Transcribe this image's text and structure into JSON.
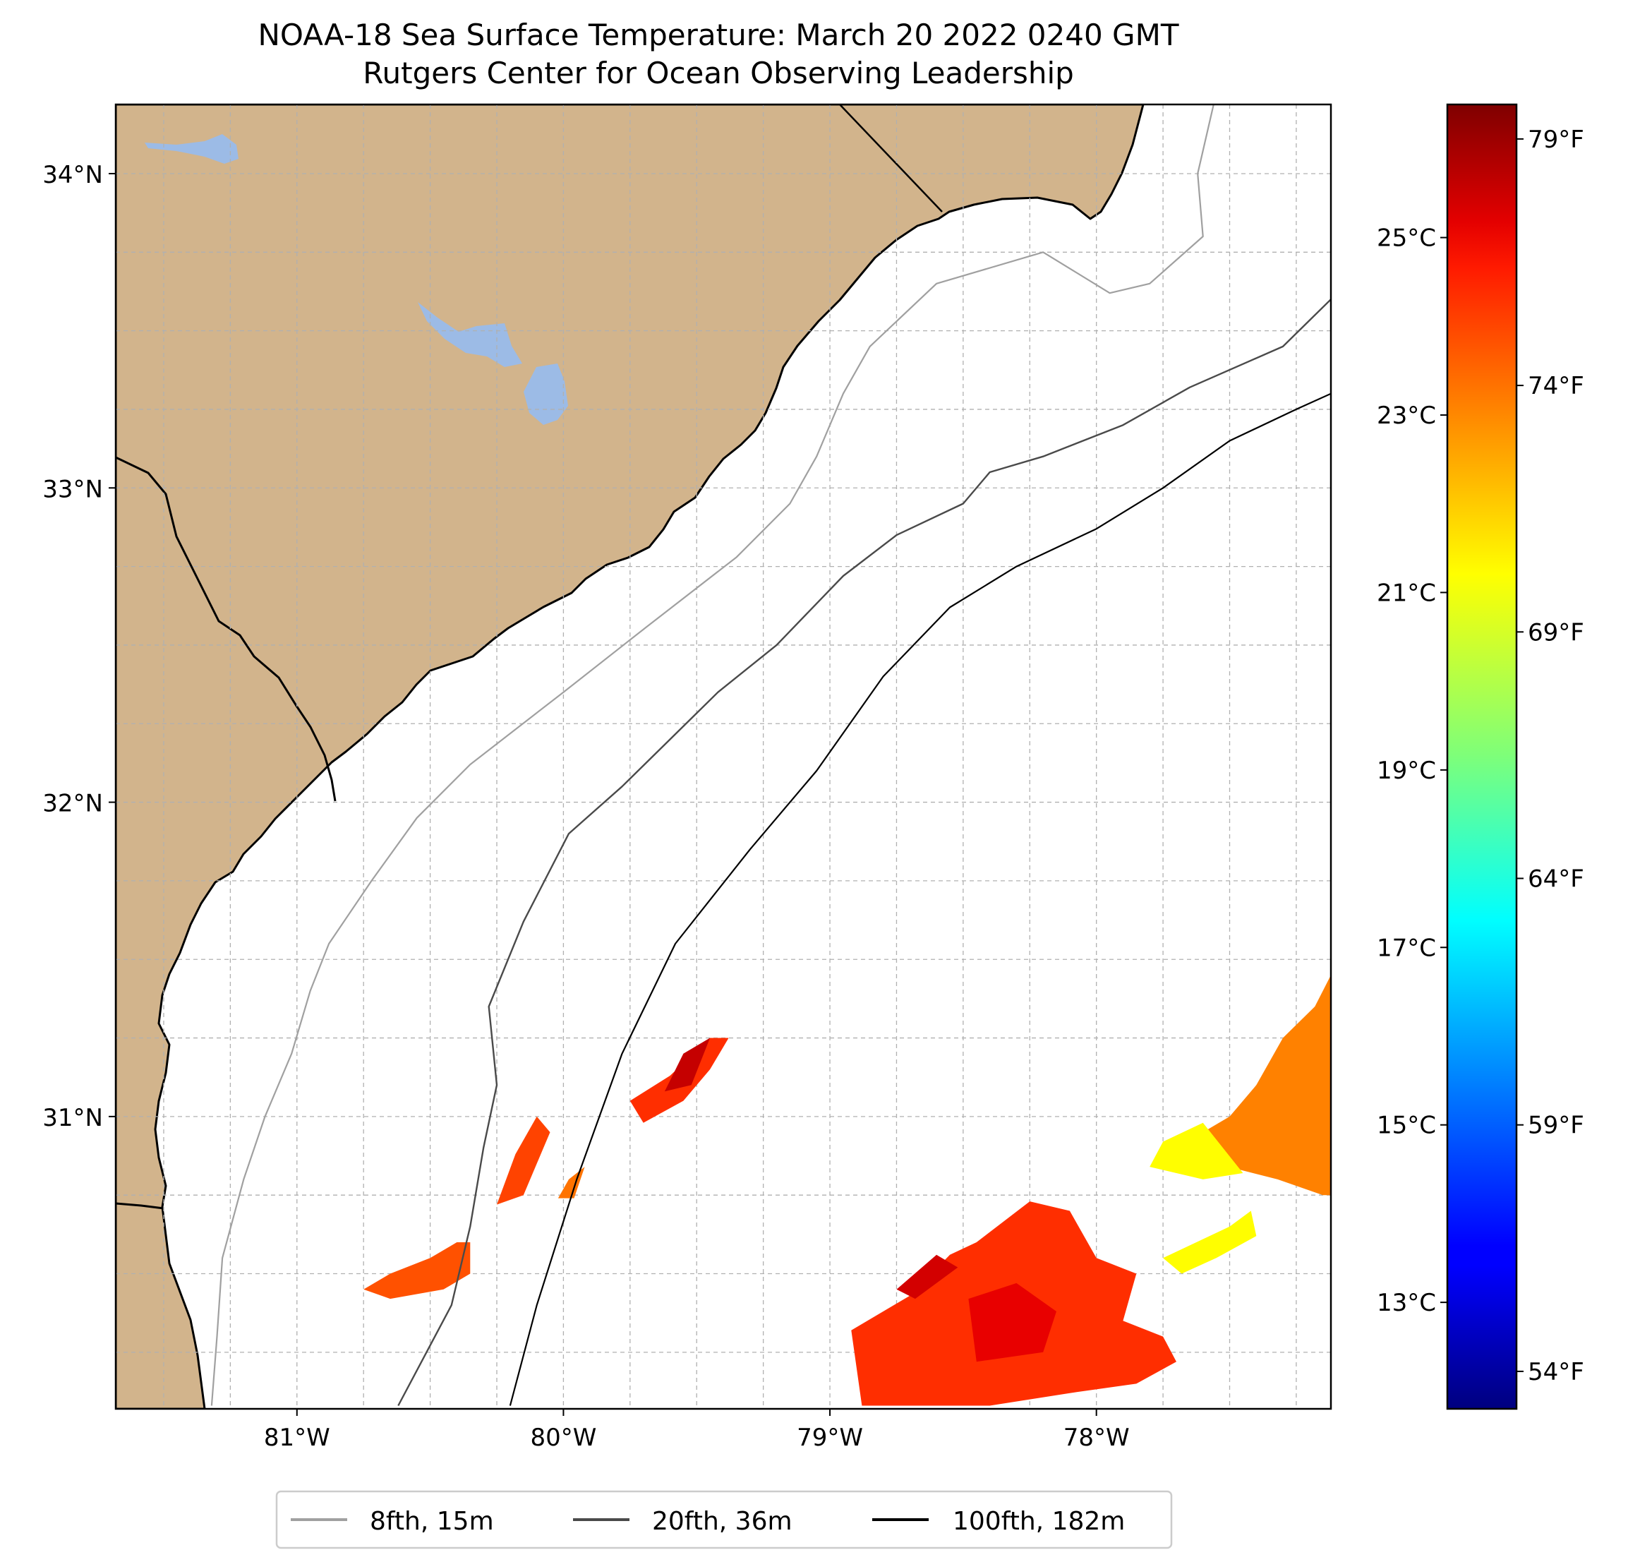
{
  "title": {
    "line1": "NOAA-18 Sea Surface Temperature: March 20 2022 0240 GMT",
    "line2": "Rutgers Center for Ocean Observing Leadership"
  },
  "map": {
    "extent": {
      "lon_min": -81.68,
      "lon_max": -77.12,
      "lat_min": 30.07,
      "lat_max": 34.22
    },
    "land_color": "#d2b48c",
    "lake_color": "#9cbbe6",
    "coast_color": "#000000",
    "gridlines": "dashed",
    "grid_minor_lon_step": 0.25,
    "grid_minor_lat_step": 0.25
  },
  "axes": {
    "lat_ticks": [
      {
        "value": 34,
        "label": "34°N"
      },
      {
        "value": 33,
        "label": "33°N"
      },
      {
        "value": 32,
        "label": "32°N"
      },
      {
        "value": 31,
        "label": "31°N"
      }
    ],
    "lon_ticks": [
      {
        "value": -81,
        "label": "81°W"
      },
      {
        "value": -80,
        "label": "80°W"
      },
      {
        "value": -79,
        "label": "79°W"
      },
      {
        "value": -78,
        "label": "78°W"
      }
    ]
  },
  "colorbar": {
    "cmap": "jet",
    "vmin_c": 11.8,
    "vmax_c": 26.5,
    "celsius_ticks": [
      {
        "value": 13,
        "label": "13°C"
      },
      {
        "value": 15,
        "label": "15°C"
      },
      {
        "value": 17,
        "label": "17°C"
      },
      {
        "value": 19,
        "label": "19°C"
      },
      {
        "value": 21,
        "label": "21°C"
      },
      {
        "value": 23,
        "label": "23°C"
      },
      {
        "value": 25,
        "label": "25°C"
      }
    ],
    "fahrenheit_ticks": [
      {
        "value": 54,
        "label": "54°F"
      },
      {
        "value": 59,
        "label": "59°F"
      },
      {
        "value": 64,
        "label": "64°F"
      },
      {
        "value": 69,
        "label": "69°F"
      },
      {
        "value": 74,
        "label": "74°F"
      },
      {
        "value": 79,
        "label": "79°F"
      }
    ]
  },
  "legend": {
    "entries": [
      {
        "label": "8fth, 15m",
        "color": "#a0a0a0"
      },
      {
        "label": "20fth, 36m",
        "color": "#4a4a4a"
      },
      {
        "label": "100fth, 182m",
        "color": "#000000"
      }
    ]
  },
  "sst_patches": [
    {
      "temp_c": 24.0,
      "points": [
        [
          -78.92,
          30.32
        ],
        [
          -78.7,
          30.43
        ],
        [
          -78.55,
          30.56
        ],
        [
          -78.45,
          30.6
        ],
        [
          -78.25,
          30.73
        ],
        [
          -78.1,
          30.7
        ],
        [
          -78.0,
          30.55
        ],
        [
          -77.85,
          30.5
        ],
        [
          -77.9,
          30.35
        ],
        [
          -77.75,
          30.3
        ],
        [
          -77.7,
          30.22
        ],
        [
          -77.85,
          30.15
        ],
        [
          -78.1,
          30.12
        ],
        [
          -78.4,
          30.08
        ],
        [
          -78.88,
          30.08
        ]
      ]
    },
    {
      "temp_c": 25.0,
      "points": [
        [
          -78.48,
          30.42
        ],
        [
          -78.3,
          30.47
        ],
        [
          -78.15,
          30.38
        ],
        [
          -78.2,
          30.25
        ],
        [
          -78.45,
          30.22
        ]
      ]
    },
    {
      "temp_c": 25.3,
      "points": [
        [
          -78.75,
          30.45
        ],
        [
          -78.6,
          30.56
        ],
        [
          -78.52,
          30.52
        ],
        [
          -78.68,
          30.42
        ]
      ]
    },
    {
      "temp_c": 22.8,
      "points": [
        [
          -77.12,
          31.45
        ],
        [
          -77.18,
          31.35
        ],
        [
          -77.3,
          31.25
        ],
        [
          -77.4,
          31.1
        ],
        [
          -77.5,
          31.0
        ],
        [
          -77.6,
          30.95
        ],
        [
          -77.55,
          30.85
        ],
        [
          -77.32,
          30.8
        ],
        [
          -77.15,
          30.75
        ],
        [
          -77.12,
          30.75
        ]
      ]
    },
    {
      "temp_c": 21.0,
      "points": [
        [
          -77.6,
          30.98
        ],
        [
          -77.75,
          30.92
        ],
        [
          -77.8,
          30.84
        ],
        [
          -77.6,
          30.8
        ],
        [
          -77.45,
          30.82
        ]
      ]
    },
    {
      "temp_c": 21.0,
      "points": [
        [
          -77.75,
          30.55
        ],
        [
          -77.5,
          30.65
        ],
        [
          -77.42,
          30.7
        ],
        [
          -77.4,
          30.62
        ],
        [
          -77.55,
          30.55
        ],
        [
          -77.68,
          30.5
        ]
      ]
    },
    {
      "temp_c": 24.0,
      "points": [
        [
          -79.6,
          31.13
        ],
        [
          -79.45,
          31.25
        ],
        [
          -79.38,
          31.25
        ],
        [
          -79.45,
          31.15
        ],
        [
          -79.55,
          31.05
        ],
        [
          -79.7,
          30.98
        ],
        [
          -79.75,
          31.05
        ]
      ]
    },
    {
      "temp_c": 25.5,
      "points": [
        [
          -79.55,
          31.2
        ],
        [
          -79.45,
          31.25
        ],
        [
          -79.52,
          31.1
        ],
        [
          -79.62,
          31.08
        ]
      ]
    },
    {
      "temp_c": 23.7,
      "points": [
        [
          -80.1,
          31.0
        ],
        [
          -80.05,
          30.95
        ],
        [
          -80.15,
          30.75
        ],
        [
          -80.25,
          30.72
        ],
        [
          -80.18,
          30.88
        ]
      ]
    },
    {
      "temp_c": 23.5,
      "points": [
        [
          -80.35,
          30.6
        ],
        [
          -80.35,
          30.5
        ],
        [
          -80.45,
          30.45
        ],
        [
          -80.65,
          30.42
        ],
        [
          -80.75,
          30.45
        ],
        [
          -80.65,
          30.5
        ],
        [
          -80.5,
          30.55
        ],
        [
          -80.4,
          30.6
        ]
      ]
    },
    {
      "temp_c": 23.0,
      "points": [
        [
          -79.98,
          30.8
        ],
        [
          -79.92,
          30.84
        ],
        [
          -79.96,
          30.74
        ],
        [
          -80.02,
          30.74
        ]
      ]
    }
  ],
  "isobaths": {
    "8fth": [
      [
        -81.32,
        30.08
      ],
      [
        -81.3,
        30.3
      ],
      [
        -81.28,
        30.55
      ],
      [
        -81.2,
        30.8
      ],
      [
        -81.12,
        31.0
      ],
      [
        -81.02,
        31.2
      ],
      [
        -80.95,
        31.4
      ],
      [
        -80.88,
        31.55
      ],
      [
        -80.72,
        31.75
      ],
      [
        -80.55,
        31.95
      ],
      [
        -80.35,
        32.12
      ],
      [
        -80.0,
        32.35
      ],
      [
        -79.7,
        32.55
      ],
      [
        -79.35,
        32.78
      ],
      [
        -79.15,
        32.95
      ],
      [
        -79.05,
        33.1
      ],
      [
        -78.95,
        33.3
      ],
      [
        -78.85,
        33.45
      ],
      [
        -78.6,
        33.65
      ],
      [
        -78.2,
        33.75
      ],
      [
        -77.95,
        33.62
      ],
      [
        -77.8,
        33.65
      ],
      [
        -77.6,
        33.8
      ],
      [
        -77.62,
        34.0
      ],
      [
        -77.56,
        34.22
      ]
    ],
    "20fth": [
      [
        -80.62,
        30.08
      ],
      [
        -80.42,
        30.4
      ],
      [
        -80.35,
        30.65
      ],
      [
        -80.3,
        30.9
      ],
      [
        -80.25,
        31.1
      ],
      [
        -80.28,
        31.35
      ],
      [
        -80.15,
        31.62
      ],
      [
        -79.98,
        31.9
      ],
      [
        -79.78,
        32.05
      ],
      [
        -79.6,
        32.2
      ],
      [
        -79.42,
        32.35
      ],
      [
        -79.2,
        32.5
      ],
      [
        -78.95,
        32.72
      ],
      [
        -78.75,
        32.85
      ],
      [
        -78.5,
        32.95
      ],
      [
        -78.4,
        33.05
      ],
      [
        -78.2,
        33.1
      ],
      [
        -77.9,
        33.2
      ],
      [
        -77.65,
        33.32
      ],
      [
        -77.3,
        33.45
      ],
      [
        -77.12,
        33.6
      ]
    ],
    "100fth": [
      [
        -80.2,
        30.08
      ],
      [
        -80.1,
        30.4
      ],
      [
        -79.95,
        30.8
      ],
      [
        -79.78,
        31.2
      ],
      [
        -79.58,
        31.55
      ],
      [
        -79.3,
        31.85
      ],
      [
        -79.05,
        32.1
      ],
      [
        -78.8,
        32.4
      ],
      [
        -78.55,
        32.62
      ],
      [
        -78.3,
        32.75
      ],
      [
        -78.0,
        32.87
      ],
      [
        -77.75,
        33.0
      ],
      [
        -77.5,
        33.15
      ],
      [
        -77.25,
        33.25
      ],
      [
        -77.12,
        33.3
      ]
    ]
  }
}
